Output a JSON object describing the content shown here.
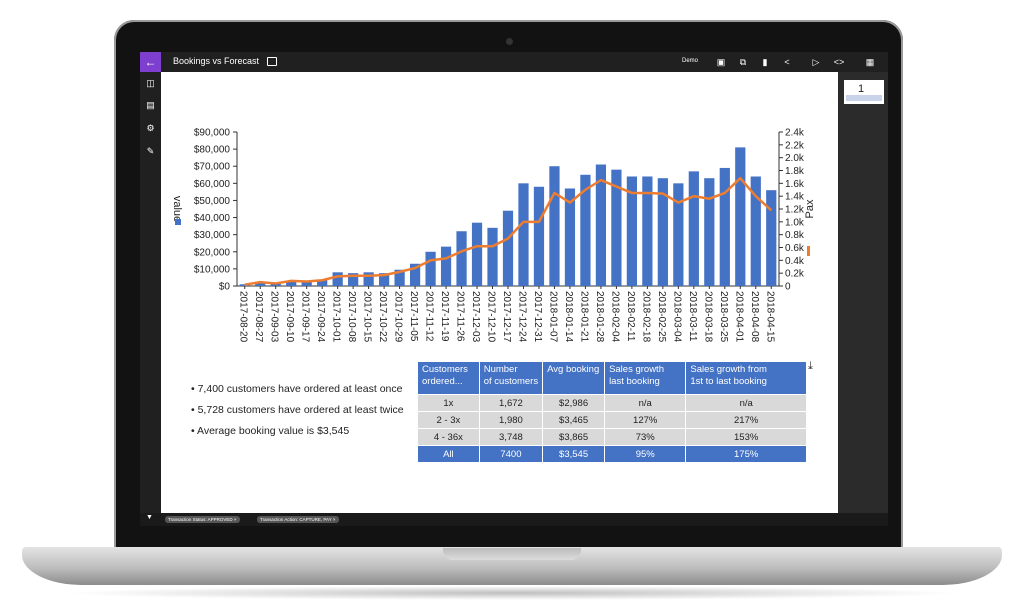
{
  "header": {
    "title": "Bookings vs Forecast",
    "user": "Demo"
  },
  "thumbnail_page": "1",
  "chart_data": {
    "type": "bar",
    "categories": [
      "2017-08-20",
      "2017-08-27",
      "2017-09-03",
      "2017-09-10",
      "2017-09-17",
      "2017-09-24",
      "2017-10-01",
      "2017-10-08",
      "2017-10-15",
      "2017-10-22",
      "2017-10-29",
      "2017-11-05",
      "2017-11-12",
      "2017-11-19",
      "2017-11-26",
      "2017-12-03",
      "2017-12-10",
      "2017-12-17",
      "2017-12-24",
      "2017-12-31",
      "2018-01-07",
      "2018-01-14",
      "2018-01-21",
      "2018-01-28",
      "2018-02-04",
      "2018-02-11",
      "2018-02-18",
      "2018-02-25",
      "2018-03-04",
      "2018-03-11",
      "2018-03-18",
      "2018-03-25",
      "2018-04-01",
      "2018-04-08",
      "2018-04-15"
    ],
    "series": [
      {
        "name": "value",
        "axis": "left",
        "type": "bar",
        "color": "#4472c4",
        "values": [
          1000,
          2500,
          1500,
          3000,
          2500,
          3500,
          8000,
          7500,
          8000,
          7500,
          9500,
          13000,
          20000,
          23000,
          32000,
          37000,
          34000,
          44000,
          60000,
          58000,
          70000,
          57000,
          65000,
          71000,
          68000,
          64000,
          64000,
          63000,
          60000,
          67000,
          63000,
          69000,
          81000,
          64000,
          56000
        ]
      },
      {
        "name": "Pax",
        "axis": "right",
        "type": "line",
        "color": "#ed7d31",
        "values": [
          20,
          60,
          40,
          80,
          70,
          90,
          150,
          160,
          160,
          170,
          220,
          280,
          400,
          430,
          540,
          620,
          620,
          740,
          1000,
          1000,
          1450,
          1300,
          1500,
          1650,
          1550,
          1450,
          1450,
          1440,
          1300,
          1400,
          1360,
          1450,
          1680,
          1400,
          1180
        ]
      }
    ],
    "yleft": {
      "min": 0,
      "max": 90000,
      "ticks": [
        "$0",
        "$10,000",
        "$20,000",
        "$30,000",
        "$40,000",
        "$50,000",
        "$60,000",
        "$70,000",
        "$80,000",
        "$90,000"
      ],
      "label": "value"
    },
    "yright": {
      "min": 0,
      "max": 2400,
      "ticks": [
        "0",
        "0.2k",
        "0.4k",
        "0.6k",
        "0.8k",
        "1.0k",
        "1.2k",
        "1.4k",
        "1.6k",
        "1.8k",
        "2.0k",
        "2.2k",
        "2.4k"
      ],
      "label": "Pax"
    }
  },
  "insights": [
    "7,400 customers have ordered at least once",
    "5,728 customers have ordered at least twice",
    "Average booking value is $3,545"
  ],
  "table": {
    "headers": [
      "Customers ordered...",
      "Number of customers",
      "Avg booking",
      "Sales growth last booking",
      "Sales growth from 1st to last booking"
    ],
    "header_lines": [
      [
        "Customers",
        "ordered..."
      ],
      [
        "Number",
        "of customers"
      ],
      [
        "Avg booking",
        ""
      ],
      [
        "Sales growth",
        "last booking"
      ],
      [
        "Sales growth from",
        "1st to last booking"
      ]
    ],
    "rows": [
      [
        "1x",
        "1,672",
        "$2,986",
        "n/a",
        "n/a"
      ],
      [
        "2 - 3x",
        "1,980",
        "$3,465",
        "127%",
        "217%"
      ],
      [
        "4 - 36x",
        "3,748",
        "$3,865",
        "73%",
        "153%"
      ]
    ],
    "total": [
      "All",
      "7400",
      "$3,545",
      "95%",
      "175%"
    ]
  },
  "filters": [
    "Transaction Status: APPROVED ×",
    "Transaction Action: CAPTURE, PAY ×"
  ],
  "colors": {
    "accent": "#7e3fd1",
    "bar": "#4472c4",
    "line": "#ed7d31"
  }
}
